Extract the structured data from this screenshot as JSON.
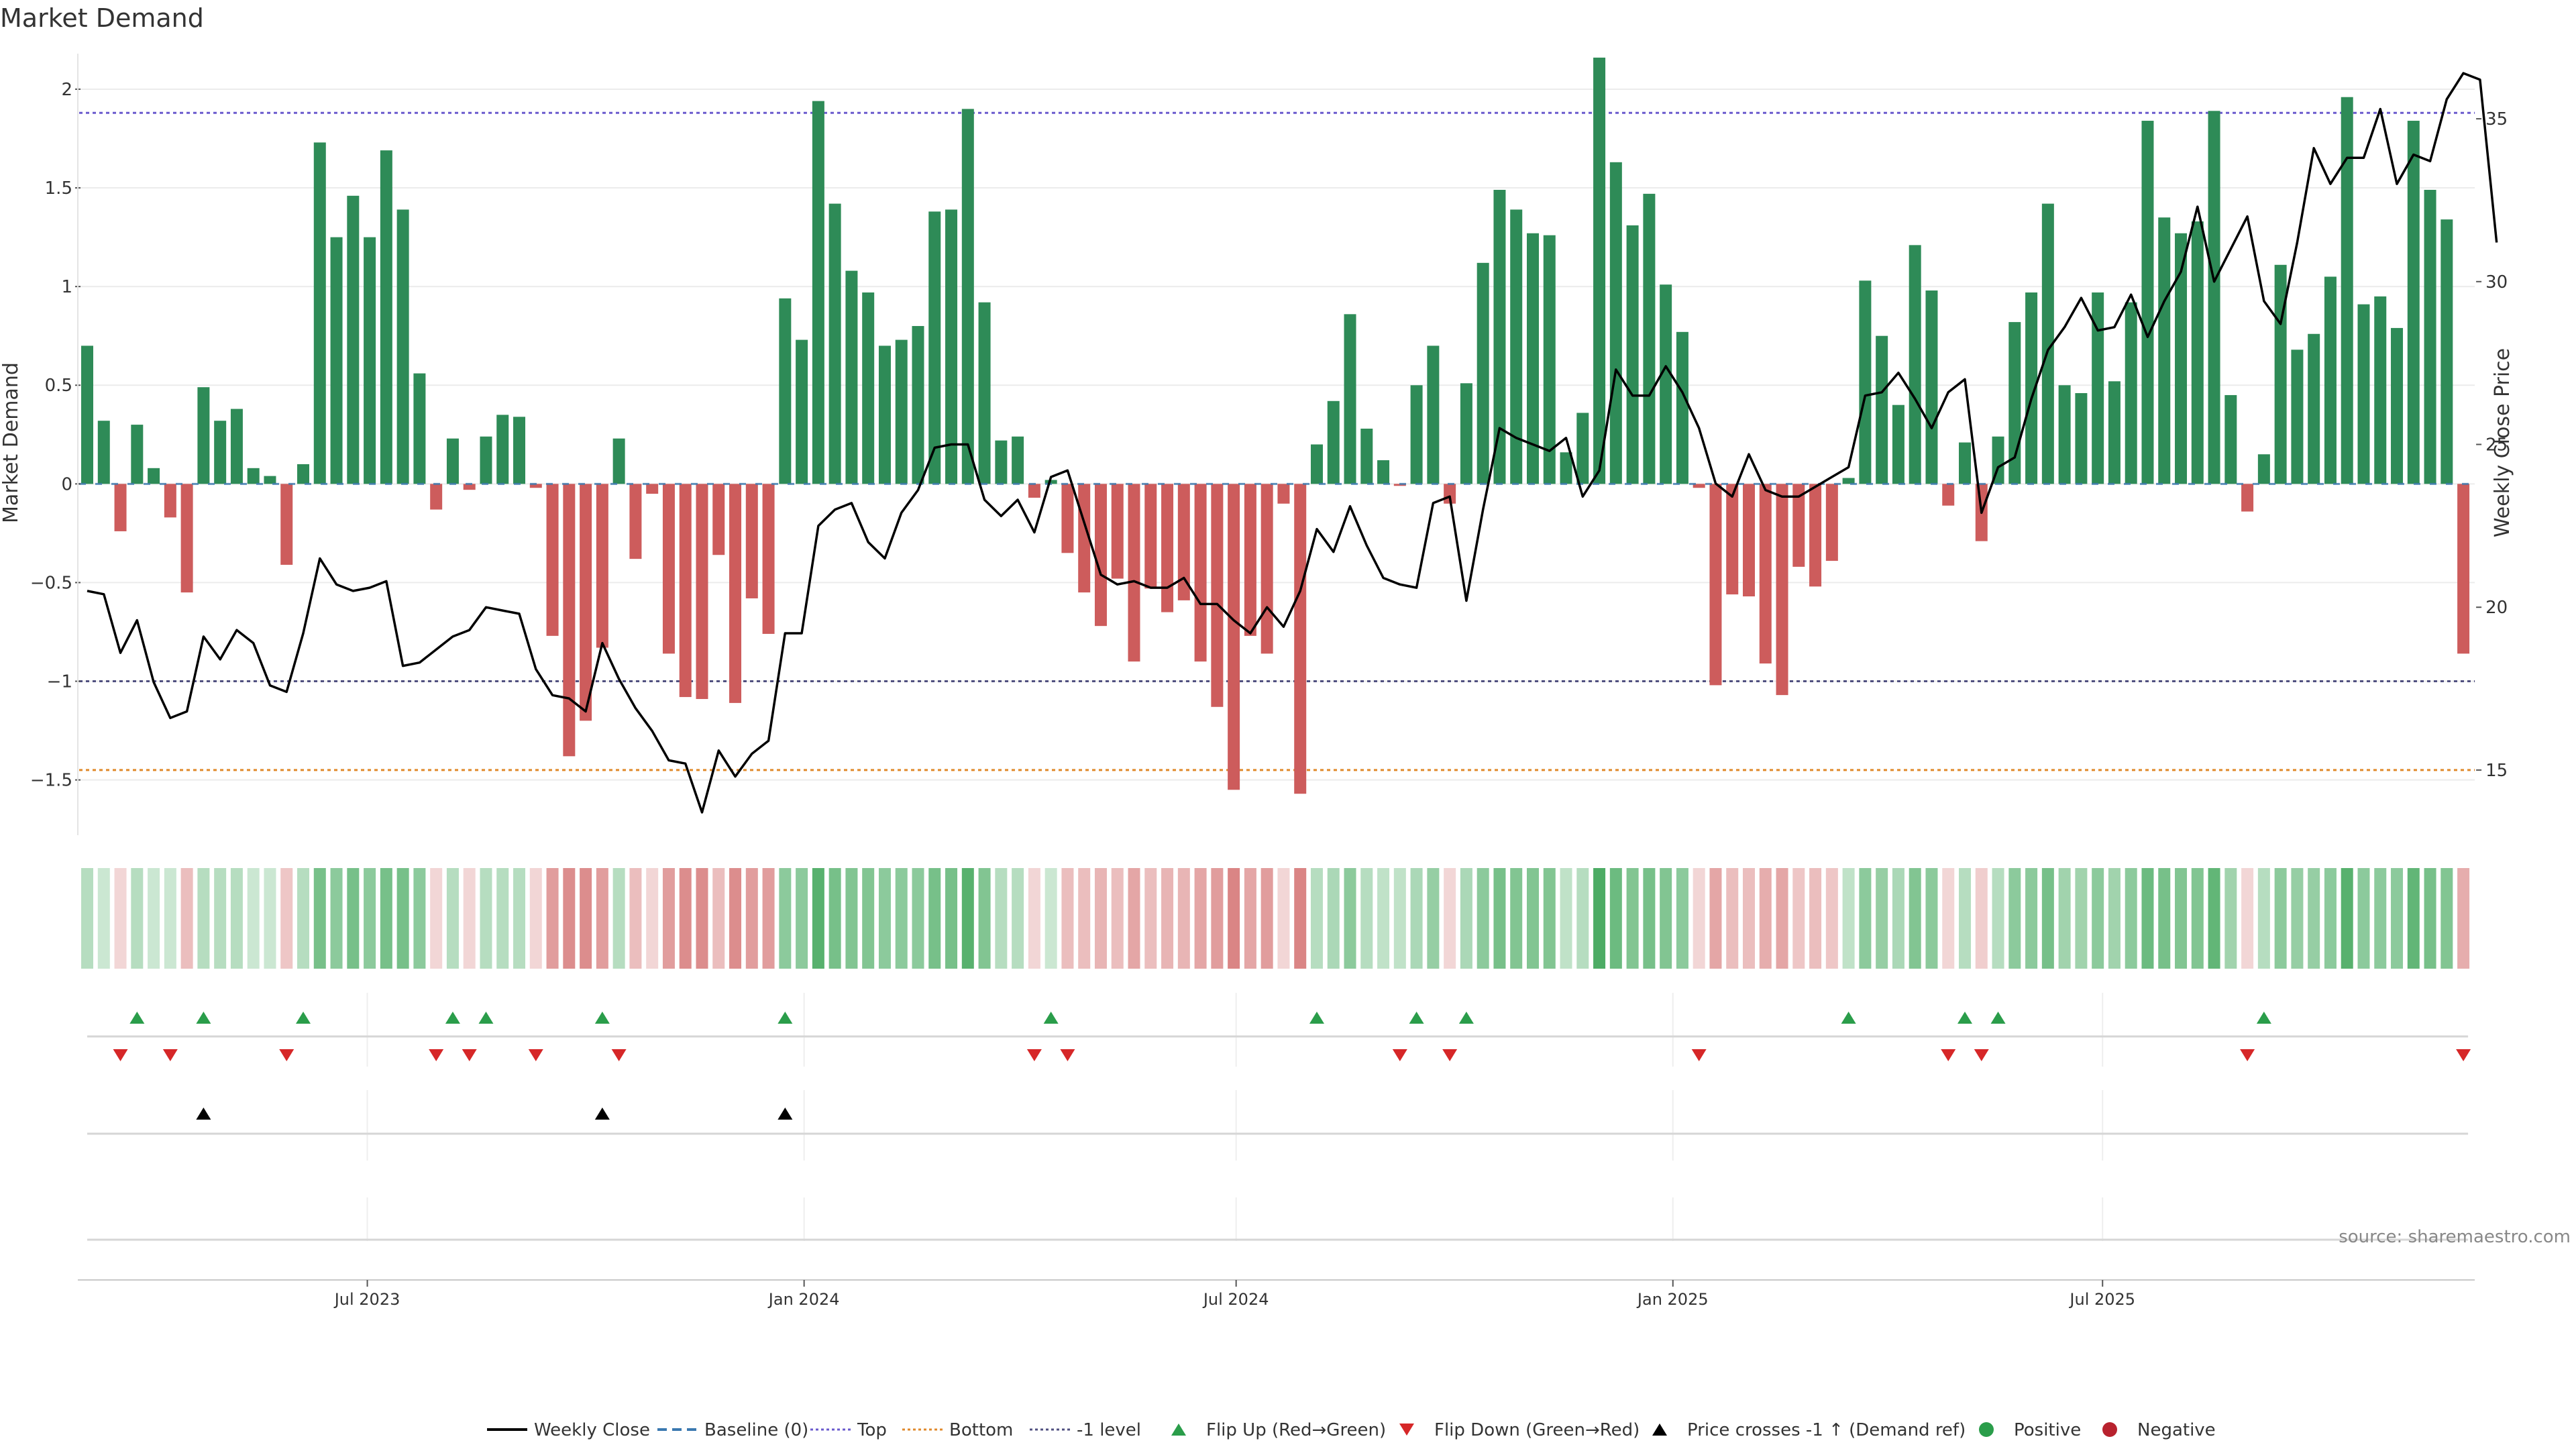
{
  "chart_data": {
    "type": "bar",
    "title": "Market Demand",
    "ylabel_left": "Market Demand",
    "ylabel_right": "Weekly Close Price",
    "source": "source: sharemaestro.com",
    "x_axis": {
      "first_week": "2023-03-05",
      "tick_labels": [
        {
          "date": "2023-07-01",
          "label": "Jul 2023"
        },
        {
          "date": "2024-01-01",
          "label": "Jan 2024"
        },
        {
          "date": "2024-07-01",
          "label": "Jul 2024"
        },
        {
          "date": "2025-01-01",
          "label": "Jan 2025"
        },
        {
          "date": "2025-07-01",
          "label": "Jul 2025"
        }
      ]
    },
    "y_left": {
      "ylim": [
        -1.78,
        2.18
      ],
      "ticks": [
        2,
        1.5,
        1,
        0.5,
        0,
        -0.5,
        -1,
        -1.5
      ],
      "tick_labels": [
        "2",
        "1.5",
        "1",
        "0.5",
        "0",
        "−0.5",
        "−1",
        "−1.5"
      ]
    },
    "y_right": {
      "ylim": [
        13,
        37
      ],
      "ticks": [
        35,
        30,
        25,
        20,
        15
      ],
      "tick_labels": [
        "35",
        "30",
        "25",
        "20",
        "15"
      ]
    },
    "reference_lines": {
      "top": 1.88,
      "bottom": -1.45,
      "minus_one": -1.0,
      "baseline": 0
    },
    "demand": [
      0.7,
      0.32,
      -0.24,
      0.3,
      0.08,
      -0.17,
      -0.55,
      0.49,
      0.32,
      0.38,
      0.08,
      0.04,
      -0.41,
      0.1,
      1.73,
      1.25,
      1.46,
      1.25,
      1.69,
      1.39,
      0.56,
      -0.13,
      0.23,
      -0.03,
      0.24,
      0.35,
      0.34,
      -0.02,
      -0.77,
      -1.38,
      -1.2,
      -0.83,
      0.23,
      -0.38,
      -0.05,
      -0.86,
      -1.08,
      -1.09,
      -0.36,
      -1.11,
      -0.58,
      -0.76,
      0.94,
      0.73,
      1.94,
      1.42,
      1.08,
      0.97,
      0.7,
      0.73,
      0.8,
      1.38,
      1.39,
      1.9,
      0.92,
      0.22,
      0.24,
      -0.07,
      0.02,
      -0.35,
      -0.55,
      -0.72,
      -0.48,
      -0.9,
      -0.53,
      -0.65,
      -0.59,
      -0.9,
      -1.13,
      -1.55,
      -0.77,
      -0.86,
      -0.1,
      -1.57,
      0.2,
      0.42,
      0.86,
      0.28,
      0.12,
      -0.01,
      0.5,
      0.7,
      -0.1,
      0.51,
      1.12,
      1.49,
      1.39,
      1.27,
      1.26,
      0.16,
      0.36,
      2.16,
      1.63,
      1.31,
      1.47,
      1.01,
      0.77,
      -0.02,
      -1.02,
      -0.56,
      -0.57,
      -0.91,
      -1.07,
      -0.42,
      -0.52,
      -0.39,
      0.03,
      1.03,
      0.75,
      0.4,
      1.21,
      0.98,
      -0.11,
      0.21,
      -0.29,
      0.24,
      0.82,
      0.97,
      1.42,
      0.5,
      0.46,
      0.97,
      0.52,
      0.92,
      1.84,
      1.35,
      1.27,
      1.33,
      1.89,
      0.45,
      -0.14,
      0.15,
      1.11,
      0.68,
      0.76,
      1.05,
      1.96,
      0.91,
      0.95,
      0.79,
      1.84,
      1.49,
      1.34,
      -0.86
    ],
    "weekly_close": [
      20.5,
      20.4,
      18.6,
      19.6,
      17.7,
      16.6,
      16.8,
      19.1,
      18.4,
      19.3,
      18.9,
      17.6,
      17.4,
      19.2,
      21.5,
      20.7,
      20.5,
      20.6,
      20.8,
      18.2,
      18.3,
      18.7,
      19.1,
      19.3,
      20.0,
      19.9,
      19.8,
      18.1,
      17.3,
      17.2,
      16.8,
      18.9,
      17.8,
      16.9,
      16.2,
      15.3,
      15.2,
      13.7,
      15.6,
      14.8,
      15.5,
      15.9,
      19.2,
      19.2,
      22.5,
      23.0,
      23.2,
      22.0,
      21.5,
      22.9,
      23.6,
      24.9,
      25.0,
      25.0,
      23.3,
      22.8,
      23.3,
      22.3,
      24.0,
      24.2,
      22.6,
      21.0,
      20.7,
      20.8,
      20.6,
      20.6,
      20.9,
      20.1,
      20.1,
      19.6,
      19.2,
      20.0,
      19.4,
      20.5,
      22.4,
      21.7,
      23.1,
      21.9,
      20.9,
      20.7,
      20.6,
      23.2,
      23.4,
      20.2,
      23.0,
      25.5,
      25.2,
      25.0,
      24.8,
      25.2,
      23.4,
      24.2,
      27.3,
      26.5,
      26.5,
      27.4,
      26.6,
      25.5,
      23.8,
      23.4,
      24.7,
      23.6,
      23.4,
      23.4,
      23.7,
      24.0,
      24.3,
      26.5,
      26.6,
      27.2,
      26.4,
      25.5,
      26.6,
      27.0,
      22.9,
      24.3,
      24.6,
      26.4,
      27.9,
      28.6,
      29.5,
      28.5,
      28.6,
      29.6,
      28.3,
      29.4,
      30.3,
      32.3,
      30.0,
      31.0,
      32.0,
      29.4,
      28.7,
      31.2,
      34.1,
      33.0,
      33.8,
      33.8,
      35.3,
      33.0,
      33.9,
      33.7,
      35.6,
      36.4,
      36.2,
      31.2
    ],
    "strip_intensity": [
      0.35,
      0.25,
      -0.25,
      0.35,
      0.25,
      0.25,
      -0.4,
      0.35,
      0.35,
      0.35,
      0.25,
      0.25,
      -0.35,
      0.35,
      0.65,
      0.55,
      0.65,
      0.55,
      0.65,
      0.65,
      0.55,
      -0.25,
      0.35,
      -0.25,
      0.35,
      0.35,
      0.35,
      -0.25,
      -0.6,
      -0.7,
      -0.7,
      -0.6,
      0.35,
      -0.4,
      -0.25,
      -0.6,
      -0.7,
      -0.7,
      -0.4,
      -0.7,
      -0.6,
      -0.6,
      0.55,
      0.55,
      0.8,
      0.65,
      0.6,
      0.6,
      0.55,
      0.55,
      0.55,
      0.65,
      0.65,
      0.8,
      0.6,
      0.35,
      0.35,
      -0.25,
      0.25,
      -0.4,
      -0.4,
      -0.45,
      -0.4,
      -0.55,
      -0.4,
      -0.45,
      -0.45,
      -0.55,
      -0.6,
      -0.75,
      -0.55,
      -0.6,
      -0.25,
      -0.75,
      0.35,
      0.4,
      0.55,
      0.35,
      0.3,
      0.3,
      0.4,
      0.5,
      -0.25,
      0.4,
      0.55,
      0.65,
      0.6,
      0.6,
      0.6,
      0.3,
      0.35,
      0.85,
      0.7,
      0.6,
      0.65,
      0.6,
      0.55,
      -0.25,
      -0.55,
      -0.4,
      -0.4,
      -0.5,
      -0.55,
      -0.35,
      -0.4,
      -0.35,
      0.3,
      0.55,
      0.5,
      0.4,
      0.6,
      0.55,
      -0.25,
      0.35,
      -0.3,
      0.35,
      0.55,
      0.55,
      0.65,
      0.45,
      0.45,
      0.55,
      0.45,
      0.55,
      0.7,
      0.65,
      0.6,
      0.6,
      0.75,
      0.45,
      -0.25,
      0.35,
      0.55,
      0.5,
      0.5,
      0.55,
      0.8,
      0.55,
      0.55,
      0.55,
      0.75,
      0.65,
      0.6,
      -0.5
    ],
    "flip_up_weeks": [
      3,
      7,
      13,
      22,
      24,
      31,
      42,
      58,
      74,
      80,
      83,
      106,
      113,
      115,
      131
    ],
    "flip_down_weeks": [
      2,
      5,
      12,
      21,
      23,
      27,
      32,
      57,
      59,
      79,
      82,
      97,
      112,
      114,
      130,
      143
    ],
    "price_cross_weeks": [
      7,
      31,
      42
    ],
    "legend": [
      "Weekly Close",
      "Baseline (0)",
      "Top",
      "Bottom",
      "-1 level",
      "Flip Up (Red→Green)",
      "Flip Down (Green→Red)",
      "Price crosses -1 ↑ (Demand ref)",
      "Positive",
      "Negative"
    ],
    "colors": {
      "positive": "#2e8b57",
      "negative": "#cd5c5c",
      "line": "#000000",
      "top": "#6a5acd",
      "bottom": "#e08a2c",
      "minus_one": "#505080",
      "flip_up": "#2a9d4a",
      "flip_down": "#d62728",
      "baseline": "#3a78b0",
      "legend_positive": "#2a9d4a",
      "legend_negative": "#b8222e"
    }
  }
}
